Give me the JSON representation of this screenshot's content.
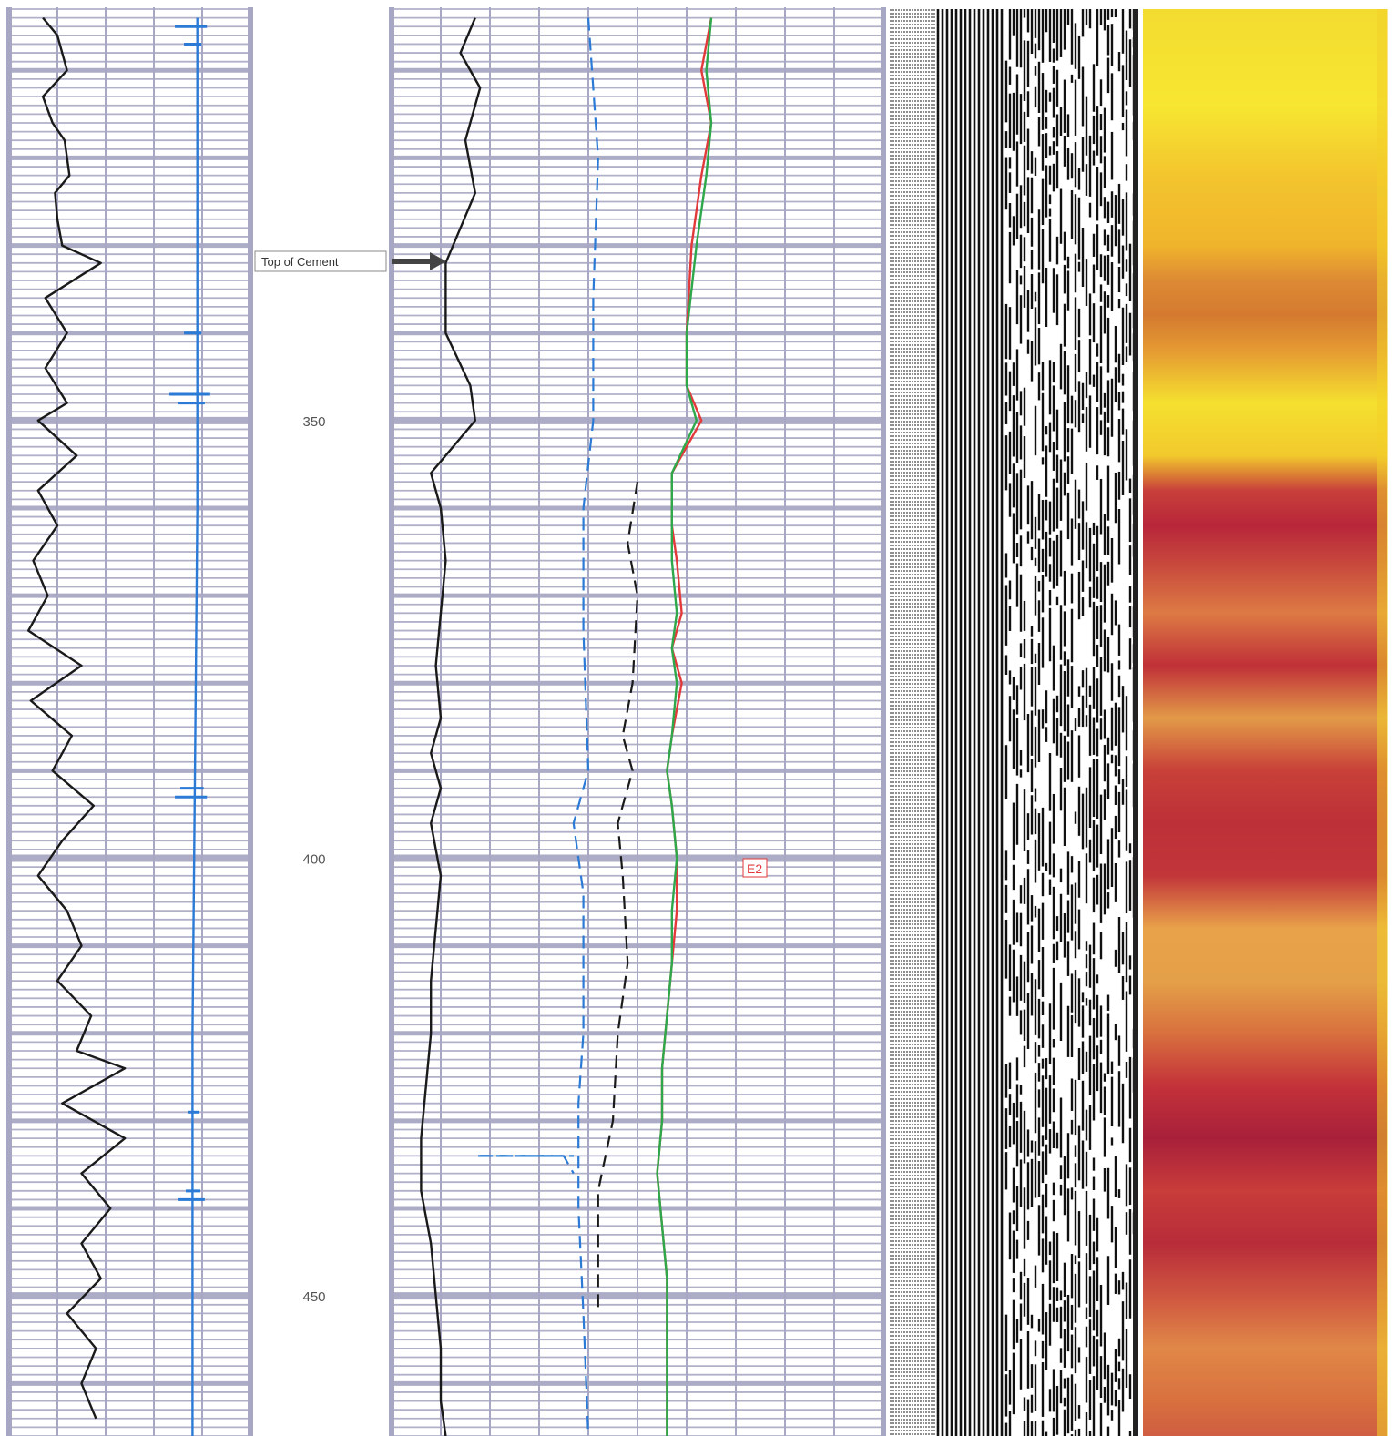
{
  "chart_data": {
    "type": "line",
    "y_axis": {
      "label": "",
      "range": [
        303,
        466
      ],
      "inverted": true,
      "tick_labels": [
        {
          "depth": 350,
          "label": "350"
        },
        {
          "depth": 400,
          "label": "400"
        },
        {
          "depth": 450,
          "label": "450"
        }
      ]
    },
    "annotations": [
      {
        "text": "Top of Cement",
        "depth": 332
      }
    ],
    "markers": [
      {
        "text": "E2",
        "depth": 400
      }
    ],
    "grid": true,
    "colors": {
      "grid": "#a8a8c4",
      "grid_major": "#a7a7c3",
      "black": "#1a1a1a",
      "blue": "#2a7ad6",
      "red": "#e23a3a",
      "green": "#2ea84a",
      "vdl_dark": "#111111"
    },
    "series": [
      {
        "track": "left",
        "color": "#1a1a1a",
        "style": "solid",
        "range": [
          0,
          100
        ],
        "points": [
          [
            304,
            14
          ],
          [
            306,
            20
          ],
          [
            310,
            24
          ],
          [
            313,
            14
          ],
          [
            316,
            18
          ],
          [
            318,
            23
          ],
          [
            322,
            25
          ],
          [
            324,
            19
          ],
          [
            327,
            20
          ],
          [
            330,
            22
          ],
          [
            332,
            38
          ],
          [
            336,
            15
          ],
          [
            340,
            24
          ],
          [
            344,
            15
          ],
          [
            348,
            24
          ],
          [
            350,
            12
          ],
          [
            354,
            28
          ],
          [
            358,
            12
          ],
          [
            362,
            20
          ],
          [
            366,
            10
          ],
          [
            370,
            16
          ],
          [
            374,
            8
          ],
          [
            378,
            30
          ],
          [
            382,
            9
          ],
          [
            386,
            26
          ],
          [
            390,
            18
          ],
          [
            394,
            35
          ],
          [
            398,
            22
          ],
          [
            402,
            12
          ],
          [
            406,
            24
          ],
          [
            410,
            30
          ],
          [
            414,
            20
          ],
          [
            418,
            34
          ],
          [
            422,
            28
          ],
          [
            424,
            48
          ],
          [
            428,
            22
          ],
          [
            432,
            48
          ],
          [
            436,
            30
          ],
          [
            440,
            42
          ],
          [
            444,
            30
          ],
          [
            448,
            38
          ],
          [
            452,
            24
          ],
          [
            456,
            36
          ],
          [
            460,
            30
          ],
          [
            464,
            36
          ]
        ]
      },
      {
        "track": "left",
        "color": "#2a7ad6",
        "style": "solid",
        "range": [
          0,
          100
        ],
        "points": [
          [
            304,
            78
          ],
          [
            330,
            78
          ],
          [
            360,
            78
          ],
          [
            390,
            77
          ],
          [
            420,
            76
          ],
          [
            440,
            76
          ],
          [
            466,
            76
          ]
        ]
      },
      {
        "track": "right",
        "color": "#1a1a1a",
        "style": "solid",
        "range": [
          0,
          100
        ],
        "points": [
          [
            304,
            17
          ],
          [
            308,
            14
          ],
          [
            312,
            18
          ],
          [
            318,
            15
          ],
          [
            324,
            17
          ],
          [
            332,
            11
          ],
          [
            340,
            11
          ],
          [
            346,
            16
          ],
          [
            350,
            17
          ],
          [
            356,
            8
          ],
          [
            360,
            10
          ],
          [
            366,
            11
          ],
          [
            372,
            10
          ],
          [
            378,
            9
          ],
          [
            384,
            10
          ],
          [
            388,
            8
          ],
          [
            392,
            10
          ],
          [
            396,
            8
          ],
          [
            402,
            10
          ],
          [
            408,
            9
          ],
          [
            414,
            8
          ],
          [
            420,
            8
          ],
          [
            426,
            7
          ],
          [
            432,
            6
          ],
          [
            438,
            6
          ],
          [
            444,
            8
          ],
          [
            450,
            9
          ],
          [
            456,
            10
          ],
          [
            462,
            10
          ],
          [
            466,
            11
          ]
        ]
      },
      {
        "track": "right",
        "color": "#2a7ad6",
        "style": "dashed",
        "range": [
          0,
          100
        ],
        "points": [
          [
            304,
            40
          ],
          [
            320,
            42
          ],
          [
            336,
            41
          ],
          [
            350,
            41
          ],
          [
            360,
            39
          ],
          [
            374,
            39
          ],
          [
            390,
            40
          ],
          [
            396,
            37
          ],
          [
            404,
            39
          ],
          [
            412,
            39
          ],
          [
            420,
            39
          ],
          [
            428,
            38
          ],
          [
            440,
            38
          ],
          [
            452,
            39
          ],
          [
            466,
            40
          ]
        ]
      },
      {
        "track": "right",
        "color": "#1a1a1a",
        "style": "dashed",
        "range": [
          0,
          100
        ],
        "points": [
          [
            357,
            50
          ],
          [
            364,
            48
          ],
          [
            370,
            50
          ],
          [
            380,
            49
          ],
          [
            386,
            47
          ],
          [
            390,
            49
          ],
          [
            396,
            46
          ],
          [
            402,
            47
          ],
          [
            412,
            48
          ],
          [
            420,
            46
          ],
          [
            430,
            45
          ],
          [
            438,
            42
          ],
          [
            452,
            42
          ]
        ]
      },
      {
        "track": "right",
        "color": "#2a7ad6",
        "style": "dashed",
        "range": [
          0,
          100
        ],
        "points": [
          [
            434,
            18
          ],
          [
            434,
            35
          ],
          [
            436,
            37
          ]
        ]
      },
      {
        "track": "right",
        "color": "#e23a3a",
        "style": "solid",
        "range": [
          0,
          100
        ],
        "points": [
          [
            304,
            65
          ],
          [
            310,
            63
          ],
          [
            316,
            65
          ],
          [
            322,
            63
          ],
          [
            330,
            61
          ],
          [
            340,
            60
          ],
          [
            346,
            60
          ],
          [
            350,
            63
          ],
          [
            356,
            57
          ],
          [
            362,
            57
          ],
          [
            366,
            58
          ],
          [
            372,
            59
          ],
          [
            376,
            57
          ],
          [
            380,
            59
          ],
          [
            386,
            57
          ],
          [
            390,
            56
          ],
          [
            394,
            57
          ],
          [
            400,
            58
          ],
          [
            406,
            58
          ],
          [
            412,
            57
          ],
          [
            418,
            56
          ],
          [
            424,
            55
          ],
          [
            430,
            55
          ],
          [
            436,
            54
          ],
          [
            442,
            55
          ],
          [
            448,
            56
          ],
          [
            454,
            56
          ],
          [
            460,
            56
          ],
          [
            466,
            56
          ]
        ]
      },
      {
        "track": "right",
        "color": "#2ea84a",
        "style": "solid",
        "range": [
          0,
          100
        ],
        "points": [
          [
            304,
            65
          ],
          [
            310,
            64
          ],
          [
            316,
            65
          ],
          [
            322,
            64
          ],
          [
            330,
            62
          ],
          [
            340,
            60
          ],
          [
            346,
            60
          ],
          [
            350,
            62
          ],
          [
            356,
            57
          ],
          [
            362,
            57
          ],
          [
            366,
            57
          ],
          [
            372,
            58
          ],
          [
            376,
            57
          ],
          [
            380,
            58
          ],
          [
            386,
            57
          ],
          [
            390,
            56
          ],
          [
            394,
            57
          ],
          [
            400,
            58
          ],
          [
            406,
            57
          ],
          [
            412,
            57
          ],
          [
            418,
            56
          ],
          [
            424,
            55
          ],
          [
            430,
            55
          ],
          [
            436,
            54
          ],
          [
            442,
            55
          ],
          [
            448,
            56
          ],
          [
            454,
            56
          ],
          [
            460,
            56
          ],
          [
            466,
            56
          ]
        ]
      }
    ],
    "heatmap": {
      "stops": [
        [
          303,
          "#f3dc30"
        ],
        [
          314,
          "#f7e631"
        ],
        [
          322,
          "#f3c52e"
        ],
        [
          330,
          "#f0b42c"
        ],
        [
          334,
          "#dd8a34"
        ],
        [
          338,
          "#d47a30"
        ],
        [
          342,
          "#e59a32"
        ],
        [
          348,
          "#f5e02f"
        ],
        [
          354,
          "#f2c92d"
        ],
        [
          358,
          "#c8403a"
        ],
        [
          362,
          "#b8263a"
        ],
        [
          366,
          "#c6453c"
        ],
        [
          372,
          "#dd7a44"
        ],
        [
          378,
          "#c03038"
        ],
        [
          384,
          "#e29a48"
        ],
        [
          390,
          "#c84038"
        ],
        [
          396,
          "#bd3038"
        ],
        [
          402,
          "#c2363a"
        ],
        [
          408,
          "#e8a24a"
        ],
        [
          414,
          "#e4a048"
        ],
        [
          420,
          "#d8703e"
        ],
        [
          426,
          "#c4323a"
        ],
        [
          432,
          "#a8203a"
        ],
        [
          438,
          "#c83c3a"
        ],
        [
          444,
          "#b82c3a"
        ],
        [
          450,
          "#cf5640"
        ],
        [
          456,
          "#e08848"
        ],
        [
          462,
          "#d8703e"
        ],
        [
          466,
          "#cf5e42"
        ]
      ]
    }
  }
}
